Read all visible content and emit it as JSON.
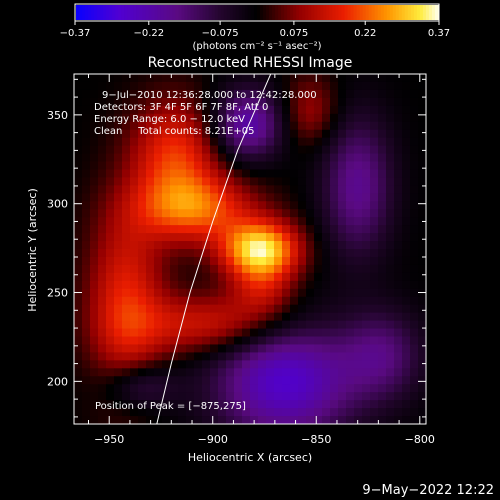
{
  "chart_data": {
    "type": "heatmap",
    "title": "Reconstructed RHESSI Image",
    "xlabel": "Heliocentric X (arcsec)",
    "ylabel": "Heliocentric Y (arcsec)",
    "xlim": [
      -967,
      -797
    ],
    "ylim": [
      176,
      373
    ],
    "x_ticks": [
      -950,
      -900,
      -850,
      -800
    ],
    "y_ticks": [
      200,
      250,
      300,
      350
    ],
    "x_tick_labels": [
      "−950",
      "−900",
      "−850",
      "−800"
    ],
    "y_tick_labels": [
      "200",
      "250",
      "300",
      "350"
    ],
    "colorbar": {
      "vmin": -0.37,
      "vmax": 0.37,
      "tick_values": [
        -0.37,
        -0.22,
        -0.075,
        0.075,
        0.22,
        0.37
      ],
      "tick_labels": [
        "−0.37",
        "−0.22",
        "−0.075",
        "0.075",
        "0.22",
        "0.37"
      ],
      "units_label": "(photons cm⁻² s⁻¹ asec⁻²)"
    },
    "annotations": [
      "9−Jul−2010 12:36:28.000 to 12:42:28.000",
      "Detectors: 3F 4F 5F 6F 7F 8F, Att 0",
      "Energy Range: 6.0 − 12.0 keV",
      "Clean     Total counts: 8.21E+05"
    ],
    "peak_label": "Position of Peak = [−875,275]",
    "peak": [
      -875,
      275
    ],
    "grid": false,
    "limb_curve": [
      [
        -927,
        176
      ],
      [
        -920,
        210
      ],
      [
        -911,
        250
      ],
      [
        -900,
        290
      ],
      [
        -888,
        330
      ],
      [
        -872,
        373
      ]
    ],
    "sources": [
      {
        "x": -877,
        "y": 274,
        "sx": 13,
        "sy": 11,
        "amp": 0.34
      },
      {
        "x": -908,
        "y": 297,
        "sx": 20,
        "sy": 13,
        "amp": 0.2
      },
      {
        "x": -918,
        "y": 326,
        "sx": 15,
        "sy": 22,
        "amp": 0.19
      },
      {
        "x": -942,
        "y": 245,
        "sx": 13,
        "sy": 36,
        "amp": 0.17
      },
      {
        "x": -900,
        "y": 232,
        "sx": 26,
        "sy": 12,
        "amp": 0.16
      },
      {
        "x": -876,
        "y": 252,
        "sx": 11,
        "sy": 11,
        "amp": 0.12
      },
      {
        "x": -853,
        "y": 352,
        "sx": 10,
        "sy": 14,
        "amp": 0.1
      },
      {
        "x": -883,
        "y": 345,
        "sx": 12,
        "sy": 14,
        "amp": -0.22
      },
      {
        "x": -865,
        "y": 200,
        "sx": 24,
        "sy": 24,
        "amp": -0.27
      },
      {
        "x": -830,
        "y": 310,
        "sx": 12,
        "sy": 28,
        "amp": -0.18
      },
      {
        "x": -818,
        "y": 215,
        "sx": 14,
        "sy": 18,
        "amp": -0.14
      },
      {
        "x": -935,
        "y": 197,
        "sx": 12,
        "sy": 9,
        "amp": -0.12
      }
    ]
  },
  "footer": {
    "date": "9−May−2022 12:22"
  }
}
